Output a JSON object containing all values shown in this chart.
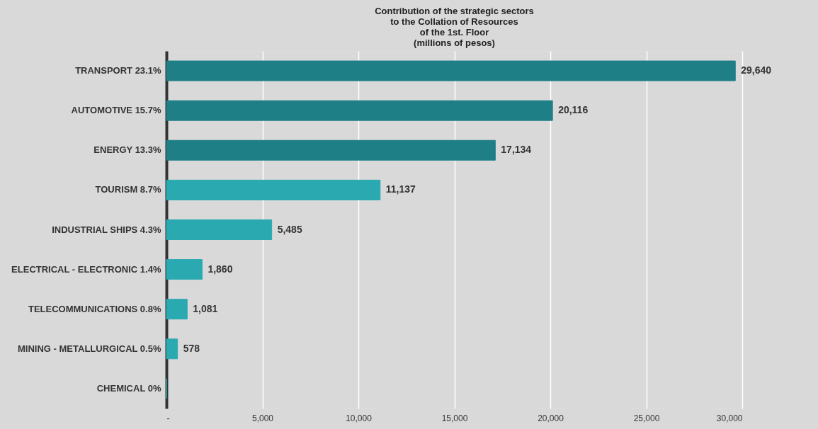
{
  "chart_data": {
    "type": "bar",
    "orientation": "horizontal",
    "title": "Contribution of the strategic sectors\nto the Collation of Resources\nof the 1st. Floor\n(millions of pesos)",
    "categories": [
      "TRANSPORT 23.1%",
      "AUTOMOTIVE 15.7%",
      "ENERGY 13.3%",
      "TOURISM 8.7%",
      "INDUSTRIAL SHIPS 4.3%",
      "ELECTRICAL - ELECTRONIC 1.4%",
      "TELECOMMUNICATIONS 0.8%",
      "MINING - METALLURGICAL 0.5%",
      "CHEMICAL 0%"
    ],
    "values": [
      29640,
      20116,
      17134,
      11137,
      5485,
      1860,
      1081,
      578,
      0
    ],
    "value_labels": [
      "29,640",
      "20,116",
      "17,134",
      "11,137",
      "5,485",
      "1,860",
      "1,081",
      "578",
      null
    ],
    "colors": [
      "#1f7f86",
      "#1f7f86",
      "#1f7f86",
      "#2aa9b1",
      "#2aa9b1",
      "#2aa9b1",
      "#2aa9b1",
      "#2aa9b1",
      "#2aa9b1"
    ],
    "xlim": [
      0,
      30000
    ],
    "xticks": [
      {
        "value": 0,
        "label": "-"
      },
      {
        "value": 5000,
        "label": "5,000"
      },
      {
        "value": 10000,
        "label": "10,000"
      },
      {
        "value": 15000,
        "label": "15,000"
      },
      {
        "value": 20000,
        "label": "20,000"
      },
      {
        "value": 25000,
        "label": "25,000"
      },
      {
        "value": 30000,
        "label": "30,000"
      }
    ],
    "grid": "x"
  }
}
